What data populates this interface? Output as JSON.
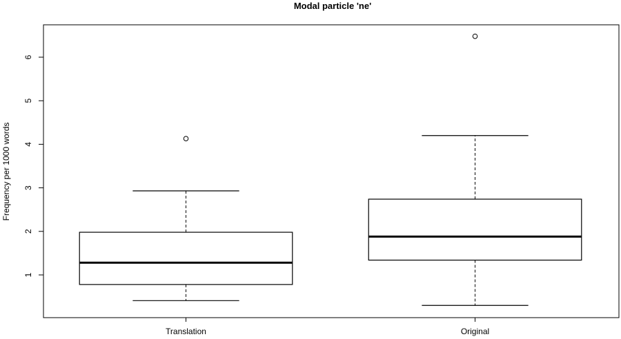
{
  "chart_data": {
    "type": "boxplot",
    "title": "Modal particle 'ne'",
    "xlabel": "",
    "ylabel": "Frequency per 1000 words",
    "ylim": [
      0,
      7
    ],
    "yticks": [
      1,
      2,
      3,
      4,
      5,
      6
    ],
    "grid": false,
    "categories": [
      "Translation",
      "Original"
    ],
    "boxes": [
      {
        "min": 0.41,
        "q1": 0.78,
        "median": 1.28,
        "q3": 1.98,
        "max": 2.93,
        "outliers": [
          4.13
        ]
      },
      {
        "min": 0.3,
        "q1": 1.34,
        "median": 1.88,
        "q3": 2.74,
        "max": 4.2,
        "outliers": [
          6.48
        ]
      }
    ]
  }
}
